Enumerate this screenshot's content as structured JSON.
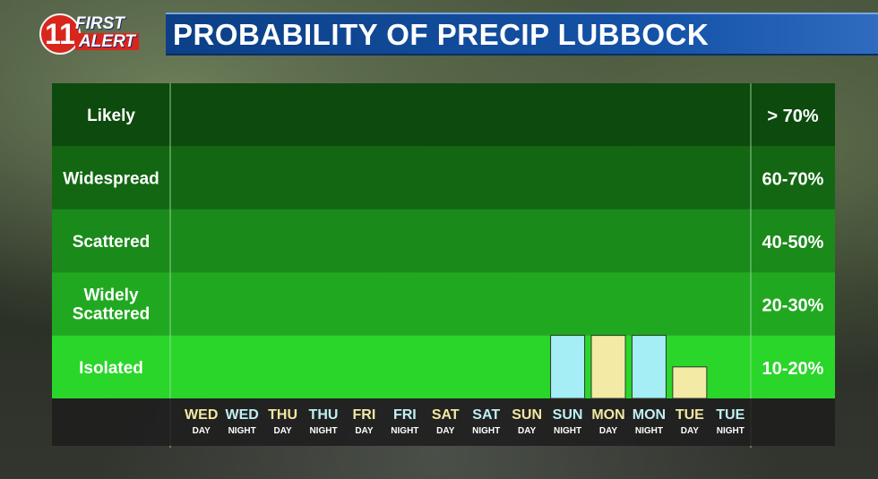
{
  "header": {
    "logo_number": "11",
    "logo_line1": "FIRST",
    "logo_line2": "ALERT",
    "title": "PROBABILITY OF PRECIP LUBBOCK"
  },
  "chart_data": {
    "type": "bar",
    "title": "PROBABILITY OF PRECIP LUBBOCK",
    "categories": [
      {
        "day": "WED",
        "period": "DAY"
      },
      {
        "day": "WED",
        "period": "NIGHT"
      },
      {
        "day": "THU",
        "period": "DAY"
      },
      {
        "day": "THU",
        "period": "NIGHT"
      },
      {
        "day": "FRI",
        "period": "DAY"
      },
      {
        "day": "FRI",
        "period": "NIGHT"
      },
      {
        "day": "SAT",
        "period": "DAY"
      },
      {
        "day": "SAT",
        "period": "NIGHT"
      },
      {
        "day": "SUN",
        "period": "DAY"
      },
      {
        "day": "SUN",
        "period": "NIGHT"
      },
      {
        "day": "MON",
        "period": "DAY"
      },
      {
        "day": "MON",
        "period": "NIGHT"
      },
      {
        "day": "TUE",
        "period": "DAY"
      },
      {
        "day": "TUE",
        "period": "NIGHT"
      }
    ],
    "values": [
      0,
      0,
      0,
      0,
      0,
      0,
      0,
      0,
      0,
      20,
      20,
      20,
      10,
      0
    ],
    "bands": [
      {
        "name": "Likely",
        "range": "> 70%",
        "color": "#0d4a0d"
      },
      {
        "name": "Widespread",
        "range": "60-70%",
        "color": "#136713"
      },
      {
        "name": "Scattered",
        "range": "40-50%",
        "color": "#1a8a1a"
      },
      {
        "name": "Widely Scattered",
        "range": "20-30%",
        "color": "#20a920"
      },
      {
        "name": "Isolated",
        "range": "10-20%",
        "color": "#2ad62a"
      }
    ],
    "colors": {
      "day": "#f3eaa6",
      "night": "#a6eef5",
      "label_day": "#f3e7a2",
      "label_night": "#bfeff4"
    },
    "ylim": [
      0,
      100
    ],
    "legend": "none"
  }
}
